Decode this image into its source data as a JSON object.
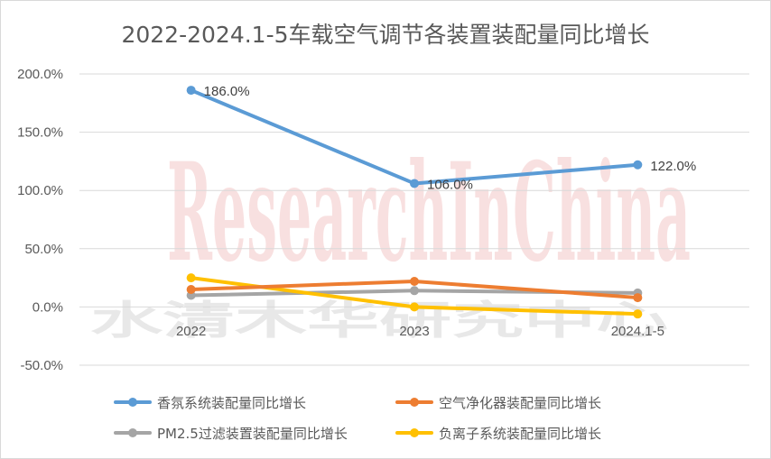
{
  "watermark": {
    "line1": "ResearchInChina",
    "line2": "水清木华研究中心"
  },
  "chart_data": {
    "type": "line",
    "title": "2022-2024.1-5车载空气调节各装置装配量同比增长",
    "categories": [
      "2022",
      "2023",
      "2024.1-5"
    ],
    "ylim": [
      -50,
      200
    ],
    "yticks": [
      -50,
      0,
      50,
      100,
      150,
      200
    ],
    "ytick_labels": [
      "-50.0%",
      "0.0%",
      "50.0%",
      "100.0%",
      "150.0%",
      "200.0%"
    ],
    "grid": true,
    "legend_position": "bottom",
    "series": [
      {
        "name": "香氛系统装配量同比增长",
        "values": [
          186,
          106,
          122
        ],
        "color": "#5b9bd5",
        "labels": [
          "186.0%",
          "106.0%",
          "122.0%"
        ]
      },
      {
        "name": "空气净化器装配量同比增长",
        "values": [
          15,
          22,
          8
        ],
        "color": "#ed7d31",
        "labels": []
      },
      {
        "name": "PM2.5过滤装置装配量同比增长",
        "values": [
          10,
          14,
          12
        ],
        "color": "#a5a5a5",
        "labels": []
      },
      {
        "name": "负离子系统装配量同比增长",
        "values": [
          25,
          0,
          -6
        ],
        "color": "#ffc000",
        "labels": []
      }
    ]
  }
}
